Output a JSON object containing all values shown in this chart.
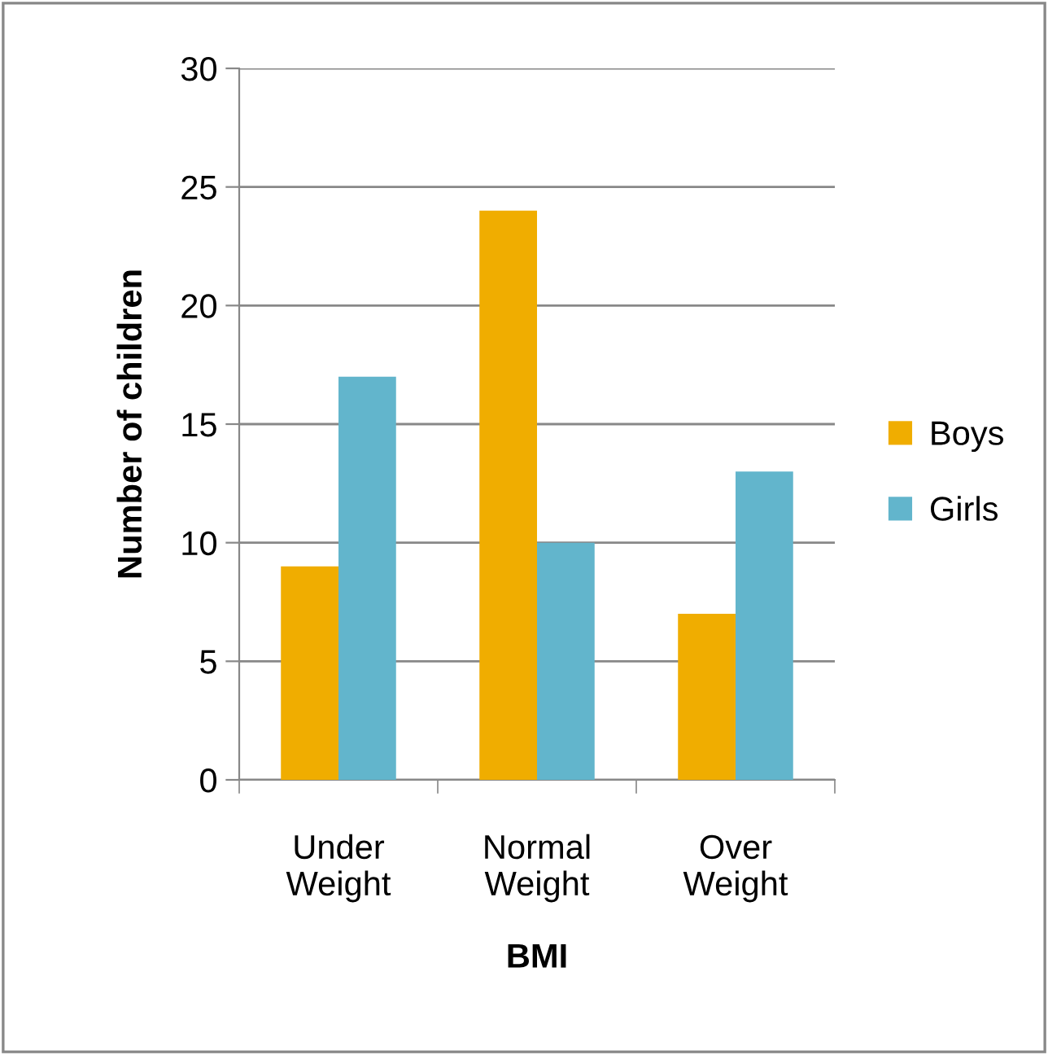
{
  "chart_data": {
    "type": "bar",
    "xlabel": "BMI",
    "ylabel": "Number of children",
    "categories": [
      "Under Weight",
      "Normal Weight",
      "Over Weight"
    ],
    "series": [
      {
        "name": "Boys",
        "color": "#f0ad00",
        "values": [
          9,
          24,
          7
        ]
      },
      {
        "name": "Girls",
        "color": "#62b5cc",
        "values": [
          17,
          10,
          13
        ]
      }
    ],
    "ylim": [
      0,
      30
    ],
    "yticks": [
      0,
      5,
      10,
      15,
      20,
      25,
      30
    ],
    "grid": "y",
    "legend": "right"
  }
}
